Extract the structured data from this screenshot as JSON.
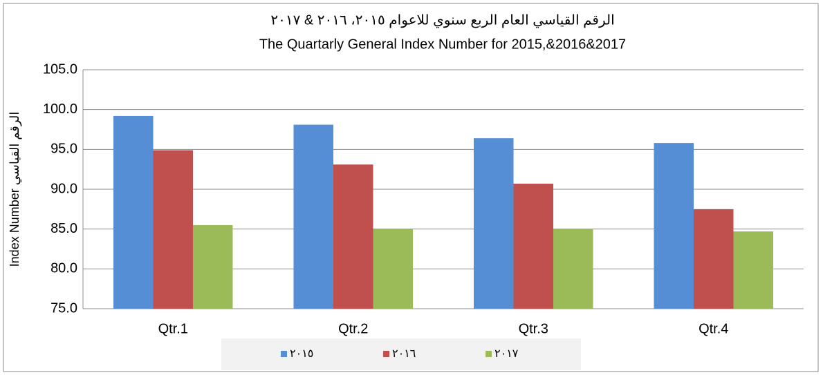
{
  "chart_data": {
    "type": "bar",
    "title": "الرقم القياسي العام الربع سنوي للاعوام ٢٠١٥، ٢٠١٦ & ٢٠١٧",
    "subtitle": "The Quartarly General Index Number for 2015,&2016&2017",
    "yaxis_label": "Index Number الرقم القياسي",
    "categories": [
      "Qtr.1",
      "Qtr.2",
      "Qtr.3",
      "Qtr.4"
    ],
    "series": [
      {
        "name": "٢٠١٥",
        "color": "#558ed5",
        "values": [
          99.2,
          98.1,
          96.4,
          95.8
        ]
      },
      {
        "name": "٢٠١٦",
        "color": "#c0504d",
        "values": [
          94.9,
          93.1,
          90.7,
          87.5
        ]
      },
      {
        "name": "٢٠١٧",
        "color": "#9bbb59",
        "values": [
          85.5,
          85.0,
          85.0,
          84.7
        ]
      }
    ],
    "ylim": [
      75,
      105
    ],
    "yticks": [
      {
        "value": 75,
        "label": "75.0"
      },
      {
        "value": 80,
        "label": "80.0"
      },
      {
        "value": 85,
        "label": "85.0"
      },
      {
        "value": 90,
        "label": "90.0"
      },
      {
        "value": 95,
        "label": "95.0"
      },
      {
        "value": 100,
        "label": "100.0"
      },
      {
        "value": 105,
        "label": "105.0"
      }
    ],
    "grid": true,
    "legend": "bottom"
  }
}
